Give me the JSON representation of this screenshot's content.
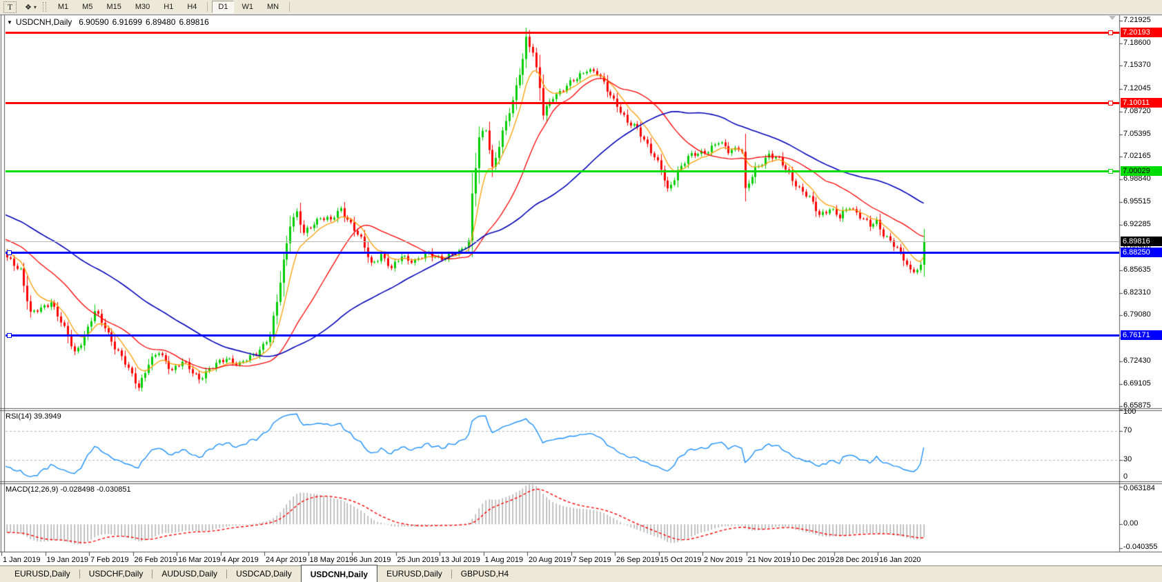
{
  "toolbar": {
    "text_tool_label": "T",
    "cursor_tool_icon": "❖",
    "dropdown_caret": "▾",
    "timeframes": [
      "M1",
      "M5",
      "M15",
      "M30",
      "H1",
      "H4",
      "D1",
      "W1",
      "MN"
    ],
    "active_timeframe": "D1"
  },
  "chart_header": {
    "marker": "▼",
    "symbol": "USDCNH,Daily",
    "open": "6.90590",
    "high": "6.91699",
    "low": "6.89480",
    "close": "6.89816"
  },
  "price_axis": {
    "ticks": [
      "7.21925",
      "7.18600",
      "7.15370",
      "7.12045",
      "7.08720",
      "7.05395",
      "7.02165",
      "6.98840",
      "6.95515",
      "6.92285",
      "6.88960",
      "6.85635",
      "6.82310",
      "6.79080",
      "6.75755",
      "6.72430",
      "6.69105",
      "6.65875"
    ]
  },
  "horizontal_lines": [
    {
      "label": "7.20193",
      "price": 7.20193,
      "color": "#ff0000",
      "text_color": "#ffffff",
      "anchor": "right",
      "weight": 3
    },
    {
      "label": "7.10011",
      "price": 7.10011,
      "color": "#ff0000",
      "text_color": "#ffffff",
      "anchor": "right",
      "weight": 3
    },
    {
      "label": "7.00029",
      "price": 7.00029,
      "color": "#00dc00",
      "text_color": "#000000",
      "anchor": "right",
      "weight": 3
    },
    {
      "label": "6.88250",
      "price": 6.8825,
      "color": "#0000ff",
      "text_color": "#ffffff",
      "anchor": "left",
      "weight": 3
    },
    {
      "label": "6.76171",
      "price": 6.76171,
      "color": "#0000ff",
      "text_color": "#ffffff",
      "anchor": "left",
      "weight": 3
    }
  ],
  "current_price": {
    "label": "6.89816",
    "price": 6.89816,
    "line_color": "#b8b8b8",
    "label_bg": "#000000",
    "label_text": "#ffffff"
  },
  "time_axis": {
    "labels": [
      "1 Jan 2019",
      "19 Jan 2019",
      "7 Feb 2019",
      "26 Feb 2019",
      "16 Mar 2019",
      "4 Apr 2019",
      "24 Apr 2019",
      "18 May 2019",
      "6 Jun 2019",
      "25 Jun 2019",
      "13 Jul 2019",
      "1 Aug 2019",
      "20 Aug 2019",
      "7 Sep 2019",
      "26 Sep 2019",
      "15 Oct 2019",
      "2 Nov 2019",
      "21 Nov 2019",
      "10 Dec 2019",
      "28 Dec 2019",
      "16 Jan 2020"
    ]
  },
  "indicators": {
    "rsi": {
      "label": "RSI(14) 39.3949",
      "period": 14,
      "value": 39.3949,
      "axis_labels": [
        "100",
        "70",
        "30",
        "0"
      ],
      "dashed_levels": [
        70,
        30
      ],
      "line_color": "#1e90ff"
    },
    "macd": {
      "label": "MACD(12,26,9) -0.028498 -0.030851",
      "fast": 12,
      "slow": 26,
      "signal_period": 9,
      "macd_value": -0.028498,
      "signal_value": -0.030851,
      "axis_labels": [
        "0.063184",
        "0.00",
        "-0.040355"
      ],
      "ymax": 0.063184,
      "ymin": -0.040355,
      "histogram_color": "#a9a9a9",
      "signal_color": "#ff0000"
    }
  },
  "bottom_tabs": {
    "tabs": [
      {
        "label": "EURUSD,Daily",
        "active": false
      },
      {
        "label": "USDCHF,Daily",
        "active": false
      },
      {
        "label": "AUDUSD,Daily",
        "active": false
      },
      {
        "label": "USDCAD,Daily",
        "active": false
      },
      {
        "label": "USDCNH,Daily",
        "active": true
      },
      {
        "label": "EURUSD,Daily",
        "active": false
      },
      {
        "label": "GBPUSD,H4",
        "active": false
      }
    ]
  },
  "chart_data": {
    "type": "candlestick",
    "symbol": "USDCNH",
    "timeframe": "Daily",
    "last_ohlc": {
      "open": 6.9059,
      "high": 6.91699,
      "low": 6.8948,
      "close": 6.89816
    },
    "ylim": [
      6.65875,
      7.21925
    ],
    "x_labels": [
      "1 Jan 2019",
      "19 Jan 2019",
      "7 Feb 2019",
      "26 Feb 2019",
      "16 Mar 2019",
      "4 Apr 2019",
      "24 Apr 2019",
      "18 May 2019",
      "6 Jun 2019",
      "25 Jun 2019",
      "13 Jul 2019",
      "1 Aug 2019",
      "20 Aug 2019",
      "7 Sep 2019",
      "26 Sep 2019",
      "15 Oct 2019",
      "2 Nov 2019",
      "21 Nov 2019",
      "10 Dec 2019",
      "28 Dec 2019",
      "16 Jan 2020"
    ],
    "bull_color": "#00cd00",
    "bear_color": "#ff0000",
    "support_resistance": [
      7.20193,
      7.10011,
      7.00029,
      6.8825,
      6.76171
    ],
    "price_keypoints": [
      [
        0,
        6.873
      ],
      [
        4,
        6.858
      ],
      [
        7,
        6.792
      ],
      [
        10,
        6.8
      ],
      [
        13,
        6.812
      ],
      [
        17,
        6.77
      ],
      [
        20,
        6.737
      ],
      [
        23,
        6.76
      ],
      [
        26,
        6.795
      ],
      [
        29,
        6.775
      ],
      [
        32,
        6.745
      ],
      [
        36,
        6.712
      ],
      [
        39,
        6.688
      ],
      [
        42,
        6.72
      ],
      [
        45,
        6.737
      ],
      [
        49,
        6.712
      ],
      [
        52,
        6.722
      ],
      [
        57,
        6.7
      ],
      [
        61,
        6.715
      ],
      [
        65,
        6.73
      ],
      [
        69,
        6.718
      ],
      [
        72,
        6.73
      ],
      [
        75,
        6.742
      ],
      [
        78,
        6.76
      ],
      [
        80,
        6.81
      ],
      [
        82,
        6.87
      ],
      [
        84,
        6.925
      ],
      [
        86,
        6.94
      ],
      [
        88,
        6.908
      ],
      [
        90,
        6.92
      ],
      [
        93,
        6.935
      ],
      [
        96,
        6.928
      ],
      [
        99,
        6.945
      ],
      [
        102,
        6.925
      ],
      [
        105,
        6.9
      ],
      [
        108,
        6.865
      ],
      [
        111,
        6.88
      ],
      [
        114,
        6.857
      ],
      [
        117,
        6.878
      ],
      [
        121,
        6.869
      ],
      [
        125,
        6.88
      ],
      [
        130,
        6.874
      ],
      [
        134,
        6.882
      ],
      [
        137,
        6.9
      ],
      [
        138,
        6.967
      ],
      [
        140,
        7.048
      ],
      [
        142,
        7.06
      ],
      [
        144,
        7.005
      ],
      [
        147,
        7.058
      ],
      [
        150,
        7.1
      ],
      [
        153,
        7.165
      ],
      [
        154,
        7.195
      ],
      [
        156,
        7.175
      ],
      [
        158,
        7.12
      ],
      [
        159,
        7.082
      ],
      [
        162,
        7.11
      ],
      [
        165,
        7.12
      ],
      [
        169,
        7.135
      ],
      [
        172,
        7.15
      ],
      [
        175,
        7.143
      ],
      [
        178,
        7.118
      ],
      [
        181,
        7.098
      ],
      [
        184,
        7.07
      ],
      [
        187,
        7.062
      ],
      [
        190,
        7.04
      ],
      [
        194,
        7.002
      ],
      [
        196,
        6.972
      ],
      [
        199,
        7.002
      ],
      [
        202,
        7.02
      ],
      [
        205,
        7.026
      ],
      [
        208,
        7.032
      ],
      [
        211,
        7.042
      ],
      [
        214,
        7.03
      ],
      [
        217,
        7.036
      ],
      [
        218,
        7.03
      ],
      [
        219,
        6.972
      ],
      [
        222,
        7.002
      ],
      [
        226,
        7.026
      ],
      [
        229,
        7.016
      ],
      [
        232,
        6.996
      ],
      [
        235,
        6.976
      ],
      [
        238,
        6.96
      ],
      [
        241,
        6.937
      ],
      [
        244,
        6.947
      ],
      [
        247,
        6.932
      ],
      [
        250,
        6.95
      ],
      [
        253,
        6.936
      ],
      [
        256,
        6.92
      ],
      [
        258,
        6.926
      ],
      [
        260,
        6.91
      ],
      [
        262,
        6.9
      ],
      [
        264,
        6.886
      ],
      [
        266,
        6.872
      ],
      [
        268,
        6.856
      ],
      [
        270,
        6.86
      ],
      [
        271,
        6.862
      ],
      [
        272,
        6.898
      ]
    ],
    "moving_averages": [
      {
        "name": "fast",
        "period": 8,
        "type": "ema",
        "color": "#ff9d00"
      },
      {
        "name": "mid",
        "period": 25,
        "type": "sma",
        "color": "#ff0000"
      },
      {
        "name": "slow",
        "period": 60,
        "type": "sma",
        "color": "#0202b8"
      }
    ]
  }
}
